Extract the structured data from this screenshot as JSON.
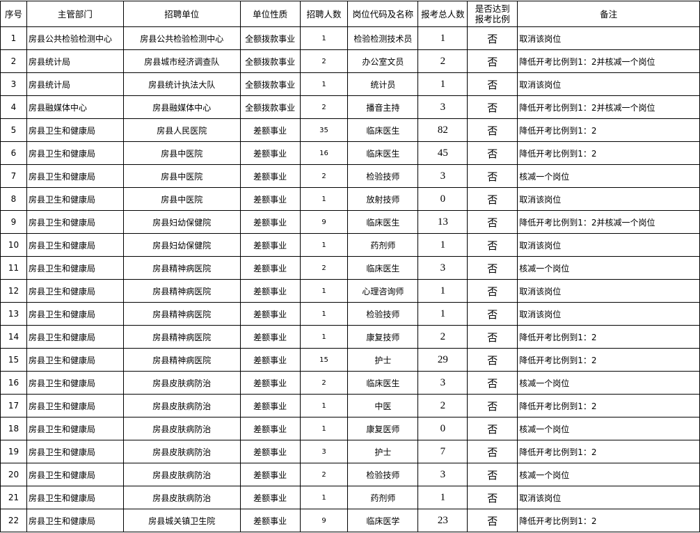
{
  "headers": [
    "序号",
    "主管部门",
    "招聘单位",
    "单位性质",
    "招聘人数",
    "岗位代码及名称",
    "报考总人数",
    "是否达到报考比例",
    "备注"
  ],
  "header_ratio_lines": [
    "是否达到",
    "报考比例"
  ],
  "rows": [
    [
      "1",
      "房县公共检验检测中心",
      "房县公共检验检测中心",
      "全额拨款事业",
      "1",
      "检验检测技术员",
      "1",
      "否",
      "取消该岗位"
    ],
    [
      "2",
      "房县统计局",
      "房县城市经济调查队",
      "全额拨款事业",
      "2",
      "办公室文员",
      "2",
      "否",
      "降低开考比例到1：2并核减一个岗位"
    ],
    [
      "3",
      "房县统计局",
      "房县统计执法大队",
      "全额拨款事业",
      "1",
      "统计员",
      "1",
      "否",
      "取消该岗位"
    ],
    [
      "4",
      "房县融媒体中心",
      "房县融媒体中心",
      "全额拨款事业",
      "2",
      "播音主持",
      "3",
      "否",
      "降低开考比例到1：2并核减一个岗位"
    ],
    [
      "5",
      "房县卫生和健康局",
      "房县人民医院",
      "差额事业",
      "35",
      "临床医生",
      "82",
      "否",
      "降低开考比例到1：2"
    ],
    [
      "6",
      "房县卫生和健康局",
      "房县中医院",
      "差额事业",
      "16",
      "临床医生",
      "45",
      "否",
      "降低开考比例到1：2"
    ],
    [
      "7",
      "房县卫生和健康局",
      "房县中医院",
      "差额事业",
      "2",
      "检验技师",
      "3",
      "否",
      "核减一个岗位"
    ],
    [
      "8",
      "房县卫生和健康局",
      "房县中医院",
      "差额事业",
      "1",
      "放射技师",
      "0",
      "否",
      "取消该岗位"
    ],
    [
      "9",
      "房县卫生和健康局",
      "房县妇幼保健院",
      "差额事业",
      "9",
      "临床医生",
      "13",
      "否",
      "降低开考比例到1：2并核减一个岗位"
    ],
    [
      "10",
      "房县卫生和健康局",
      "房县妇幼保健院",
      "差额事业",
      "1",
      "药剂师",
      "1",
      "否",
      "取消该岗位"
    ],
    [
      "11",
      "房县卫生和健康局",
      "房县精神病医院",
      "差额事业",
      "2",
      "临床医生",
      "3",
      "否",
      "核减一个岗位"
    ],
    [
      "12",
      "房县卫生和健康局",
      "房县精神病医院",
      "差额事业",
      "1",
      "心理咨询师",
      "1",
      "否",
      "取消该岗位"
    ],
    [
      "13",
      "房县卫生和健康局",
      "房县精神病医院",
      "差额事业",
      "1",
      "检验技师",
      "1",
      "否",
      "取消该岗位"
    ],
    [
      "14",
      "房县卫生和健康局",
      "房县精神病医院",
      "差额事业",
      "1",
      "康复技师",
      "2",
      "否",
      "降低开考比例到1：2"
    ],
    [
      "15",
      "房县卫生和健康局",
      "房县精神病医院",
      "差额事业",
      "15",
      "护士",
      "29",
      "否",
      "降低开考比例到1：2"
    ],
    [
      "16",
      "房县卫生和健康局",
      "房县皮肤病防治",
      "差额事业",
      "2",
      "临床医生",
      "3",
      "否",
      "核减一个岗位"
    ],
    [
      "17",
      "房县卫生和健康局",
      "房县皮肤病防治",
      "差额事业",
      "1",
      "中医",
      "2",
      "否",
      "降低开考比例到1：2"
    ],
    [
      "18",
      "房县卫生和健康局",
      "房县皮肤病防治",
      "差额事业",
      "1",
      "康复医师",
      "0",
      "否",
      "核减一个岗位"
    ],
    [
      "19",
      "房县卫生和健康局",
      "房县皮肤病防治",
      "差额事业",
      "3",
      "护士",
      "7",
      "否",
      "降低开考比例到1：2"
    ],
    [
      "20",
      "房县卫生和健康局",
      "房县皮肤病防治",
      "差额事业",
      "2",
      "检验技师",
      "3",
      "否",
      "核减一个岗位"
    ],
    [
      "21",
      "房县卫生和健康局",
      "房县皮肤病防治",
      "差额事业",
      "1",
      "药剂师",
      "1",
      "否",
      "取消该岗位"
    ],
    [
      "22",
      "房县卫生和健康局",
      "房县城关镇卫生院",
      "差额事业",
      "9",
      "临床医学",
      "23",
      "否",
      "降低开考比例到1：2"
    ]
  ]
}
